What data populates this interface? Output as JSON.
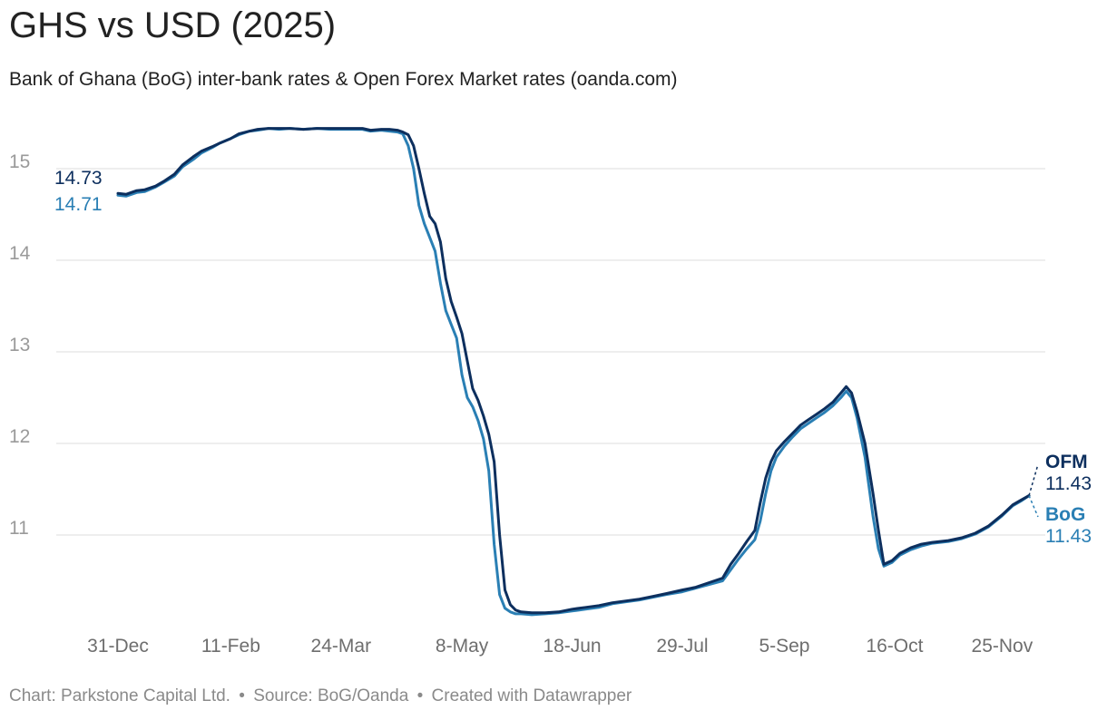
{
  "header": {
    "title": "GHS vs USD (2025)",
    "subtitle": "Bank of Ghana (BoG) inter-bank rates & Open Forex Market rates (oanda.com)"
  },
  "footer": {
    "chart_credit": "Chart: Parkstone Capital Ltd.",
    "separator": "•",
    "source": "Source: BoG/Oanda",
    "created_with": "Created with Datawrapper"
  },
  "chart_data": {
    "type": "line",
    "title": "GHS vs USD (2025)",
    "subtitle": "Bank of Ghana (BoG) inter-bank rates & Open Forex Market rates (oanda.com)",
    "xlabel": "",
    "ylabel": "",
    "x_tick_labels": [
      "31-Dec",
      "11-Feb",
      "24-Mar",
      "8-May",
      "18-Jun",
      "29-Jul",
      "5-Sep",
      "16-Oct",
      "25-Nov"
    ],
    "y_ticks": [
      11,
      12,
      13,
      14,
      15
    ],
    "ylim": [
      10.05,
      15.55
    ],
    "grid": true,
    "legend": "direct labels at line ends",
    "start_labels": [
      {
        "series": "OFM",
        "value": "14.73"
      },
      {
        "series": "BoG",
        "value": "14.71"
      }
    ],
    "end_labels": [
      {
        "series": "OFM",
        "name": "OFM",
        "value": "11.43"
      },
      {
        "series": "BoG",
        "name": "BoG",
        "value": "11.43"
      }
    ],
    "colors": {
      "OFM": "#0d2f5e",
      "BoG": "#2a7fb4",
      "grid": "#dddddd",
      "axis_text": "#9a9a9a"
    },
    "series": [
      {
        "name": "OFM",
        "color": "#0d2f5e",
        "points": [
          [
            "2024-12-31",
            14.73
          ],
          [
            "2025-01-03",
            14.72
          ],
          [
            "2025-01-07",
            14.76
          ],
          [
            "2025-01-10",
            14.77
          ],
          [
            "2025-01-14",
            14.81
          ],
          [
            "2025-01-17",
            14.86
          ],
          [
            "2025-01-21",
            14.94
          ],
          [
            "2025-01-24",
            15.04
          ],
          [
            "2025-01-28",
            15.13
          ],
          [
            "2025-01-31",
            15.19
          ],
          [
            "2025-02-04",
            15.24
          ],
          [
            "2025-02-07",
            15.28
          ],
          [
            "2025-02-11",
            15.33
          ],
          [
            "2025-02-14",
            15.38
          ],
          [
            "2025-02-18",
            15.41
          ],
          [
            "2025-02-21",
            15.43
          ],
          [
            "2025-02-25",
            15.44
          ],
          [
            "2025-03-01",
            15.44
          ],
          [
            "2025-03-05",
            15.44
          ],
          [
            "2025-03-10",
            15.43
          ],
          [
            "2025-03-15",
            15.44
          ],
          [
            "2025-03-20",
            15.44
          ],
          [
            "2025-03-24",
            15.44
          ],
          [
            "2025-03-28",
            15.44
          ],
          [
            "2025-04-01",
            15.44
          ],
          [
            "2025-04-04",
            15.42
          ],
          [
            "2025-04-08",
            15.43
          ],
          [
            "2025-04-11",
            15.43
          ],
          [
            "2025-04-14",
            15.42
          ],
          [
            "2025-04-16",
            15.4
          ],
          [
            "2025-04-18",
            15.37
          ],
          [
            "2025-04-20",
            15.25
          ],
          [
            "2025-04-22",
            15.0
          ],
          [
            "2025-04-24",
            14.73
          ],
          [
            "2025-04-26",
            14.48
          ],
          [
            "2025-04-28",
            14.4
          ],
          [
            "2025-04-30",
            14.2
          ],
          [
            "2025-05-02",
            13.8
          ],
          [
            "2025-05-04",
            13.55
          ],
          [
            "2025-05-06",
            13.38
          ],
          [
            "2025-05-08",
            13.2
          ],
          [
            "2025-05-10",
            12.9
          ],
          [
            "2025-05-12",
            12.6
          ],
          [
            "2025-05-14",
            12.47
          ],
          [
            "2025-05-16",
            12.3
          ],
          [
            "2025-05-18",
            12.1
          ],
          [
            "2025-05-20",
            11.8
          ],
          [
            "2025-05-22",
            11.0
          ],
          [
            "2025-05-24",
            10.4
          ],
          [
            "2025-05-26",
            10.24
          ],
          [
            "2025-05-28",
            10.18
          ],
          [
            "2025-05-30",
            10.16
          ],
          [
            "2025-06-03",
            10.15
          ],
          [
            "2025-06-08",
            10.15
          ],
          [
            "2025-06-13",
            10.16
          ],
          [
            "2025-06-18",
            10.19
          ],
          [
            "2025-06-23",
            10.21
          ],
          [
            "2025-06-28",
            10.23
          ],
          [
            "2025-07-03",
            10.26
          ],
          [
            "2025-07-08",
            10.28
          ],
          [
            "2025-07-13",
            10.3
          ],
          [
            "2025-07-18",
            10.33
          ],
          [
            "2025-07-23",
            10.36
          ],
          [
            "2025-07-29",
            10.4
          ],
          [
            "2025-08-03",
            10.43
          ],
          [
            "2025-08-08",
            10.48
          ],
          [
            "2025-08-13",
            10.53
          ],
          [
            "2025-08-16",
            10.68
          ],
          [
            "2025-08-19",
            10.8
          ],
          [
            "2025-08-22",
            10.93
          ],
          [
            "2025-08-25",
            11.05
          ],
          [
            "2025-08-27",
            11.35
          ],
          [
            "2025-08-29",
            11.62
          ],
          [
            "2025-08-31",
            11.8
          ],
          [
            "2025-09-02",
            11.92
          ],
          [
            "2025-09-05",
            12.02
          ],
          [
            "2025-09-08",
            12.11
          ],
          [
            "2025-09-11",
            12.2
          ],
          [
            "2025-09-14",
            12.26
          ],
          [
            "2025-09-17",
            12.32
          ],
          [
            "2025-09-20",
            12.38
          ],
          [
            "2025-09-23",
            12.45
          ],
          [
            "2025-09-26",
            12.55
          ],
          [
            "2025-09-28",
            12.62
          ],
          [
            "2025-09-30",
            12.55
          ],
          [
            "2025-10-02",
            12.35
          ],
          [
            "2025-10-05",
            12.0
          ],
          [
            "2025-10-08",
            11.45
          ],
          [
            "2025-10-10",
            11.05
          ],
          [
            "2025-10-12",
            10.68
          ],
          [
            "2025-10-15",
            10.72
          ],
          [
            "2025-10-18",
            10.8
          ],
          [
            "2025-10-22",
            10.86
          ],
          [
            "2025-10-26",
            10.9
          ],
          [
            "2025-10-30",
            10.92
          ],
          [
            "2025-11-05",
            10.94
          ],
          [
            "2025-11-10",
            10.97
          ],
          [
            "2025-11-15",
            11.02
          ],
          [
            "2025-11-20",
            11.1
          ],
          [
            "2025-11-25",
            11.22
          ],
          [
            "2025-11-29",
            11.33
          ],
          [
            "2025-12-02",
            11.38
          ],
          [
            "2025-12-05",
            11.43
          ]
        ]
      },
      {
        "name": "BoG",
        "color": "#2a7fb4",
        "points": [
          [
            "2024-12-31",
            14.71
          ],
          [
            "2025-01-03",
            14.7
          ],
          [
            "2025-01-07",
            14.74
          ],
          [
            "2025-01-10",
            14.75
          ],
          [
            "2025-01-14",
            14.8
          ],
          [
            "2025-01-17",
            14.85
          ],
          [
            "2025-01-21",
            14.92
          ],
          [
            "2025-01-24",
            15.02
          ],
          [
            "2025-01-28",
            15.1
          ],
          [
            "2025-01-31",
            15.17
          ],
          [
            "2025-02-04",
            15.23
          ],
          [
            "2025-02-07",
            15.28
          ],
          [
            "2025-02-11",
            15.33
          ],
          [
            "2025-02-14",
            15.37
          ],
          [
            "2025-02-18",
            15.41
          ],
          [
            "2025-02-21",
            15.42
          ],
          [
            "2025-02-25",
            15.44
          ],
          [
            "2025-03-01",
            15.43
          ],
          [
            "2025-03-05",
            15.44
          ],
          [
            "2025-03-10",
            15.43
          ],
          [
            "2025-03-15",
            15.44
          ],
          [
            "2025-03-20",
            15.43
          ],
          [
            "2025-03-24",
            15.43
          ],
          [
            "2025-03-28",
            15.43
          ],
          [
            "2025-04-01",
            15.43
          ],
          [
            "2025-04-04",
            15.41
          ],
          [
            "2025-04-08",
            15.42
          ],
          [
            "2025-04-11",
            15.41
          ],
          [
            "2025-04-14",
            15.4
          ],
          [
            "2025-04-16",
            15.38
          ],
          [
            "2025-04-18",
            15.25
          ],
          [
            "2025-04-20",
            15.0
          ],
          [
            "2025-04-22",
            14.6
          ],
          [
            "2025-04-24",
            14.4
          ],
          [
            "2025-04-26",
            14.25
          ],
          [
            "2025-04-28",
            14.1
          ],
          [
            "2025-04-30",
            13.75
          ],
          [
            "2025-05-02",
            13.45
          ],
          [
            "2025-05-04",
            13.3
          ],
          [
            "2025-05-06",
            13.15
          ],
          [
            "2025-05-08",
            12.75
          ],
          [
            "2025-05-10",
            12.5
          ],
          [
            "2025-05-12",
            12.4
          ],
          [
            "2025-05-14",
            12.25
          ],
          [
            "2025-05-16",
            12.05
          ],
          [
            "2025-05-18",
            11.7
          ],
          [
            "2025-05-20",
            10.9
          ],
          [
            "2025-05-22",
            10.35
          ],
          [
            "2025-05-24",
            10.2
          ],
          [
            "2025-05-26",
            10.16
          ],
          [
            "2025-05-28",
            10.14
          ],
          [
            "2025-05-30",
            10.14
          ],
          [
            "2025-06-03",
            10.13
          ],
          [
            "2025-06-08",
            10.14
          ],
          [
            "2025-06-13",
            10.15
          ],
          [
            "2025-06-18",
            10.17
          ],
          [
            "2025-06-23",
            10.19
          ],
          [
            "2025-06-28",
            10.21
          ],
          [
            "2025-07-03",
            10.25
          ],
          [
            "2025-07-08",
            10.27
          ],
          [
            "2025-07-13",
            10.29
          ],
          [
            "2025-07-18",
            10.32
          ],
          [
            "2025-07-23",
            10.35
          ],
          [
            "2025-07-29",
            10.38
          ],
          [
            "2025-08-03",
            10.42
          ],
          [
            "2025-08-08",
            10.46
          ],
          [
            "2025-08-13",
            10.5
          ],
          [
            "2025-08-16",
            10.62
          ],
          [
            "2025-08-19",
            10.74
          ],
          [
            "2025-08-22",
            10.85
          ],
          [
            "2025-08-25",
            10.95
          ],
          [
            "2025-08-27",
            11.15
          ],
          [
            "2025-08-29",
            11.45
          ],
          [
            "2025-08-31",
            11.7
          ],
          [
            "2025-09-02",
            11.85
          ],
          [
            "2025-09-05",
            11.97
          ],
          [
            "2025-09-08",
            12.07
          ],
          [
            "2025-09-11",
            12.16
          ],
          [
            "2025-09-14",
            12.22
          ],
          [
            "2025-09-17",
            12.28
          ],
          [
            "2025-09-20",
            12.34
          ],
          [
            "2025-09-23",
            12.41
          ],
          [
            "2025-09-26",
            12.5
          ],
          [
            "2025-09-28",
            12.57
          ],
          [
            "2025-09-30",
            12.5
          ],
          [
            "2025-10-02",
            12.28
          ],
          [
            "2025-10-05",
            11.85
          ],
          [
            "2025-10-08",
            11.2
          ],
          [
            "2025-10-10",
            10.85
          ],
          [
            "2025-10-12",
            10.66
          ],
          [
            "2025-10-15",
            10.7
          ],
          [
            "2025-10-18",
            10.78
          ],
          [
            "2025-10-22",
            10.84
          ],
          [
            "2025-10-26",
            10.88
          ],
          [
            "2025-10-30",
            10.91
          ],
          [
            "2025-11-05",
            10.93
          ],
          [
            "2025-11-10",
            10.96
          ],
          [
            "2025-11-15",
            11.01
          ],
          [
            "2025-11-20",
            11.09
          ],
          [
            "2025-11-25",
            11.21
          ],
          [
            "2025-11-29",
            11.32
          ],
          [
            "2025-12-02",
            11.37
          ],
          [
            "2025-12-05",
            11.43
          ]
        ]
      }
    ]
  }
}
